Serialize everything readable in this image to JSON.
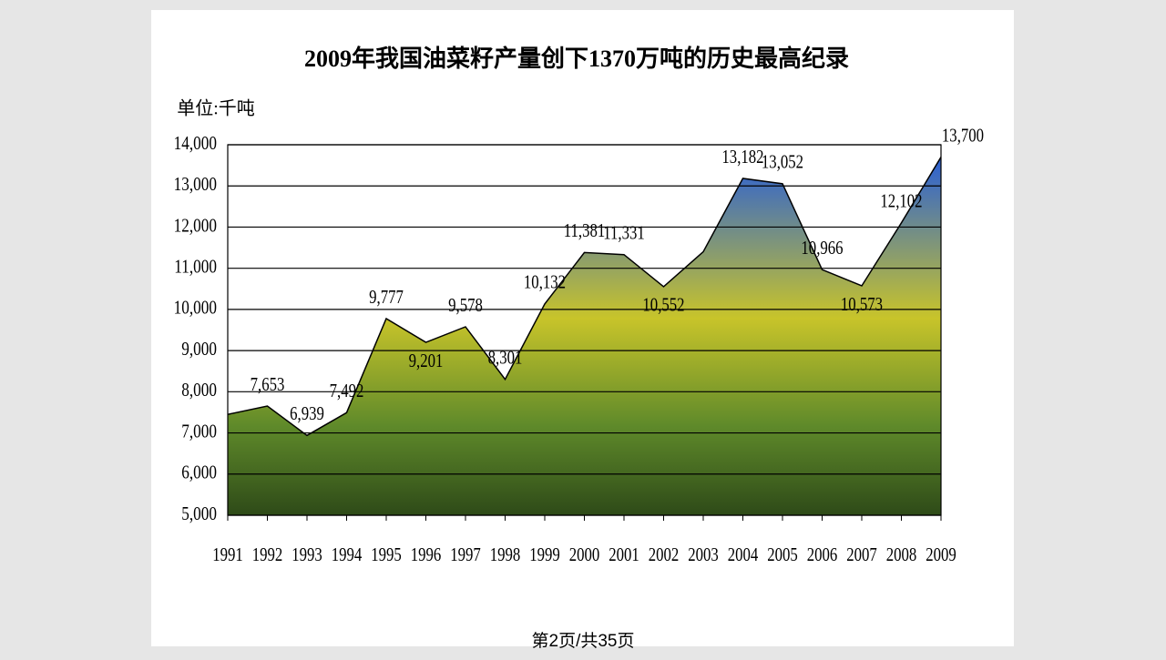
{
  "chart_data": {
    "type": "area",
    "title": "2009年我国油菜籽产量创下1370万吨的历史最高纪录",
    "unit_label": "单位:千吨",
    "footer": "第2页/共35页",
    "categories": [
      "1991",
      "1992",
      "1993",
      "1994",
      "1995",
      "1996",
      "1997",
      "1998",
      "1999",
      "2000",
      "2001",
      "2002",
      "2003",
      "2004",
      "2005",
      "2006",
      "2007",
      "2008",
      "2009"
    ],
    "values": [
      7450,
      7653,
      6939,
      7492,
      9777,
      9201,
      9578,
      8301,
      10132,
      11381,
      11331,
      10552,
      11400,
      13182,
      13052,
      10966,
      10573,
      12102,
      13700
    ],
    "value_labels": [
      null,
      "7,653",
      "6,939",
      "7,492",
      "9,777",
      "9,201",
      "9,578",
      "8,301",
      "10,132",
      "11,381",
      "11,331",
      "10,552",
      null,
      "13,182",
      "13,052",
      "10,966",
      "10,573",
      "12,102",
      "13,700"
    ],
    "ylim": [
      5000,
      14000
    ],
    "yticks": [
      {
        "value": 5000,
        "label": "5,000"
      },
      {
        "value": 6000,
        "label": "6,000"
      },
      {
        "value": 7000,
        "label": "7,000"
      },
      {
        "value": 8000,
        "label": "8,000"
      },
      {
        "value": 9000,
        "label": "9,000"
      },
      {
        "value": 10000,
        "label": "10,000"
      },
      {
        "value": 11000,
        "label": "11,000"
      },
      {
        "value": 12000,
        "label": "12,000"
      },
      {
        "value": 13000,
        "label": "13,000"
      },
      {
        "value": 14000,
        "label": "14,000"
      }
    ],
    "grid": true
  }
}
